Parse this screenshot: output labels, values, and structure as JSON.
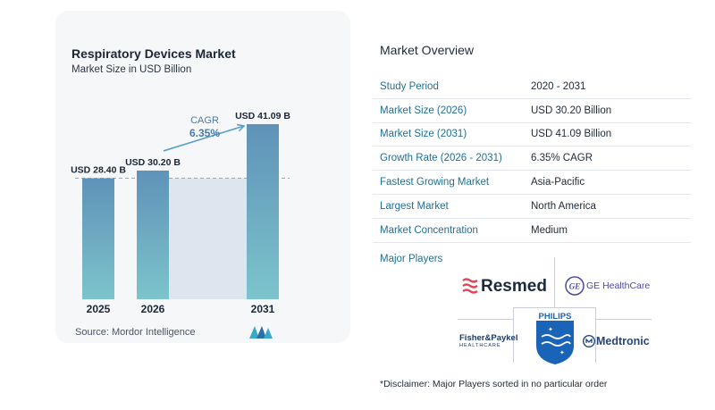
{
  "chart_title": "Respiratory Devices Market",
  "chart_subtitle": "Market Size in USD Billion",
  "chart_data": {
    "type": "bar",
    "categories": [
      "2025",
      "2026",
      "2031"
    ],
    "values": [
      28.4,
      30.2,
      41.09
    ],
    "data_labels": [
      "USD 28.40 B",
      "USD 30.20 B",
      "USD 41.09 B"
    ],
    "cagr_label": "CAGR",
    "cagr_value": "6.35%",
    "ylim": [
      0,
      44
    ]
  },
  "source": "Source:  Mordor Intelligence",
  "overview": {
    "title": "Market Overview",
    "rows": [
      {
        "label": "Study Period",
        "value": "2020 - 2031"
      },
      {
        "label": "Market Size (2026)",
        "value": "USD 30.20 Billion"
      },
      {
        "label": "Market Size (2031)",
        "value": "USD 41.09 Billion"
      },
      {
        "label": "Growth Rate (2026 - 2031)",
        "value": "6.35% CAGR"
      },
      {
        "label": "Fastest Growing Market",
        "value": "Asia-Pacific"
      },
      {
        "label": "Largest Market",
        "value": "North America"
      },
      {
        "label": "Market Concentration",
        "value": "Medium"
      }
    ]
  },
  "players": {
    "title": "Major Players",
    "resmed": "Resmed",
    "ge": "GE HealthCare",
    "fisher_paykel": "Fisher&Paykel",
    "fisher_paykel_sub": "HEALTHCARE",
    "philips": "PHILIPS",
    "medtronic": "Medtronic"
  },
  "disclaimer": "*Disclaimer: Major Players sorted in no particular order",
  "colors": {
    "bar_top": "#5f92b8",
    "bar_bottom": "#7cc4cc",
    "arrow": "#5aa0c8",
    "label_blue": "#1f6f93"
  }
}
